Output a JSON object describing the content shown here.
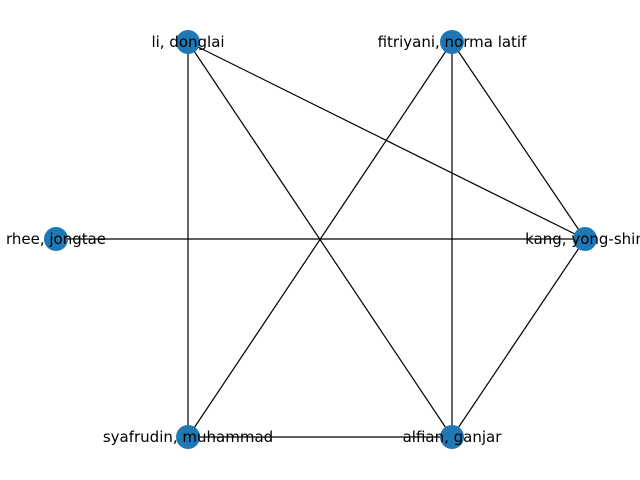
{
  "graph": {
    "node_color": "#1f77b4",
    "edge_color": "#000000",
    "nodes": [
      {
        "id": "li",
        "label": "li, donglai"
      },
      {
        "id": "fitriyani",
        "label": "fitriyani, norma latif"
      },
      {
        "id": "rhee",
        "label": "rhee, jongtae"
      },
      {
        "id": "kang",
        "label": "kang, yong-shin"
      },
      {
        "id": "syafrudin",
        "label": "syafrudin, muhammad"
      },
      {
        "id": "alfian",
        "label": "alfian, ganjar"
      }
    ],
    "edges": [
      [
        "li",
        "syafrudin"
      ],
      [
        "li",
        "alfian"
      ],
      [
        "li",
        "kang"
      ],
      [
        "fitriyani",
        "syafrudin"
      ],
      [
        "fitriyani",
        "alfian"
      ],
      [
        "fitriyani",
        "kang"
      ],
      [
        "rhee",
        "kang"
      ],
      [
        "syafrudin",
        "alfian"
      ],
      [
        "alfian",
        "kang"
      ]
    ]
  }
}
